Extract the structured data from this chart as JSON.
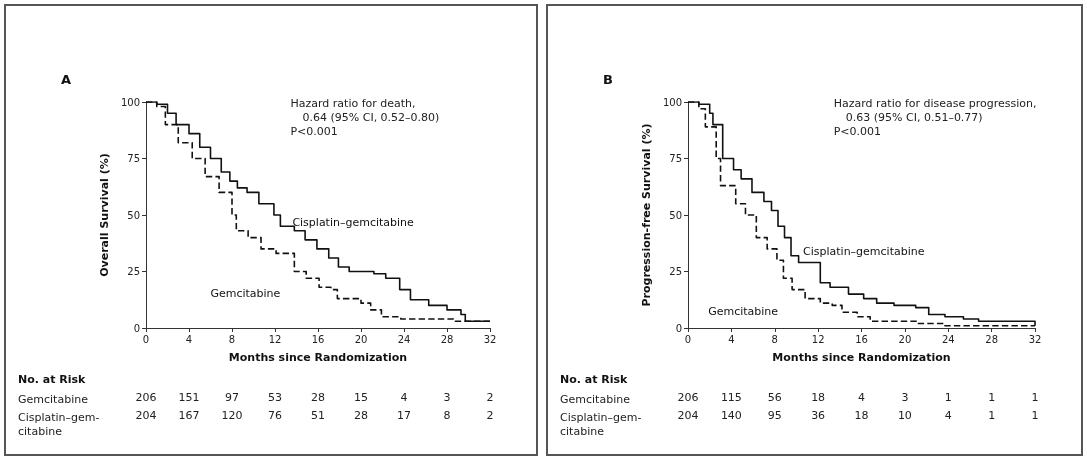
{
  "chart_data": [
    {
      "type": "step",
      "title": "A",
      "xlabel": "Months since Randomization",
      "ylabel": "Overall Survival (%)",
      "xlim": [
        0,
        32
      ],
      "xticks": [
        0,
        4,
        8,
        12,
        16,
        20,
        24,
        28,
        32
      ],
      "ylim": [
        0,
        100
      ],
      "yticks": [
        0,
        25,
        50,
        75,
        100
      ],
      "series": [
        {
          "name": "Cisplatin–gemcitabine",
          "color": "#111111",
          "line_style": "solid",
          "x": [
            0,
            1,
            2,
            2.8,
            4,
            5,
            6,
            7,
            7.8,
            8.5,
            9.4,
            10.5,
            11.9,
            12.5,
            13.8,
            14.8,
            15.9,
            17,
            17.9,
            18.9,
            21.2,
            22.3,
            23.6,
            24.6,
            26.3,
            28,
            29.3,
            29.7,
            32
          ],
          "values": [
            100,
            99,
            95,
            90,
            86,
            80,
            75,
            69,
            65,
            62,
            60,
            55,
            50,
            45,
            43,
            39,
            35,
            31,
            27,
            25,
            24,
            22,
            17,
            12.5,
            10,
            8,
            6,
            3,
            3
          ]
        },
        {
          "name": "Gemcitabine",
          "color": "#111111",
          "line_style": "dashed",
          "x": [
            0,
            1,
            1.8,
            3,
            4.3,
            5.5,
            6.8,
            8,
            8.4,
            9.5,
            10.7,
            12.1,
            13.8,
            14.9,
            16.1,
            17.2,
            17.8,
            20,
            20.9,
            21.9,
            23.7,
            28.6,
            32
          ],
          "values": [
            100,
            98,
            90,
            82,
            75,
            67,
            60,
            50,
            43,
            40,
            35,
            33,
            25,
            22,
            18,
            17,
            13,
            11,
            8,
            5,
            4,
            3,
            3
          ]
        }
      ],
      "annotations": [
        "Hazard ratio for death,",
        "0.64 (95% CI, 0.52–0.80)",
        "P<0.001",
        "No. at Risk",
        "Gemcitabine",
        "206",
        "151",
        "97",
        "53",
        "28",
        "15",
        "4",
        "3",
        "2",
        "Cisplatin–gem-\ncitabine",
        "204",
        "167",
        "120",
        "76",
        "51",
        "28",
        "17",
        "8",
        "2"
      ]
    },
    {
      "type": "step",
      "title": "B",
      "xlabel": "Months since Randomization",
      "ylabel": "Progression-free Survival (%)",
      "xlim": [
        0,
        32
      ],
      "xticks": [
        0,
        4,
        8,
        12,
        16,
        20,
        24,
        28,
        32
      ],
      "ylim": [
        0,
        100
      ],
      "yticks": [
        0,
        25,
        50,
        75,
        100
      ],
      "series": [
        {
          "name": "Cisplatin–gemcitabine",
          "color": "#111111",
          "line_style": "solid",
          "x": [
            0,
            1,
            2,
            2.3,
            3.2,
            4.2,
            4.9,
            5.9,
            7,
            7.7,
            8.3,
            8.9,
            9.5,
            10.2,
            10.9,
            12.2,
            13.1,
            14.8,
            16.2,
            17.4,
            19,
            21,
            22.2,
            23.7,
            25.4,
            26.8,
            32
          ],
          "values": [
            100,
            99,
            95,
            90,
            75,
            70,
            66,
            60,
            56,
            52,
            45,
            40,
            32,
            29,
            29,
            20,
            18,
            15,
            13,
            11,
            10,
            9,
            6,
            5,
            4,
            3,
            1
          ]
        },
        {
          "name": "Gemcitabine",
          "color": "#111111",
          "line_style": "dashed",
          "x": [
            0,
            1,
            1.6,
            2.6,
            3,
            4.4,
            5.3,
            6.3,
            7.3,
            8.2,
            8.8,
            9.6,
            10.8,
            12.2,
            13.3,
            14.2,
            15.6,
            16.8,
            21.1,
            23.7,
            32
          ],
          "values": [
            100,
            97,
            89,
            75,
            63,
            55,
            50,
            40,
            35,
            30,
            22,
            17,
            13,
            11,
            10,
            7,
            5,
            3,
            2,
            1,
            1
          ]
        }
      ],
      "annotations": [
        "Hazard ratio for disease progression,",
        "0.63 (95% CI, 0.51–0.77)",
        "P<0.001",
        "No. at Risk",
        "Gemcitabine",
        "206",
        "115",
        "56",
        "18",
        "4",
        "3",
        "1",
        "1",
        "1",
        "Cisplatin–gem-\ncitabine",
        "204",
        "140",
        "95",
        "36",
        "18",
        "10",
        "4",
        "1",
        "1"
      ]
    }
  ]
}
